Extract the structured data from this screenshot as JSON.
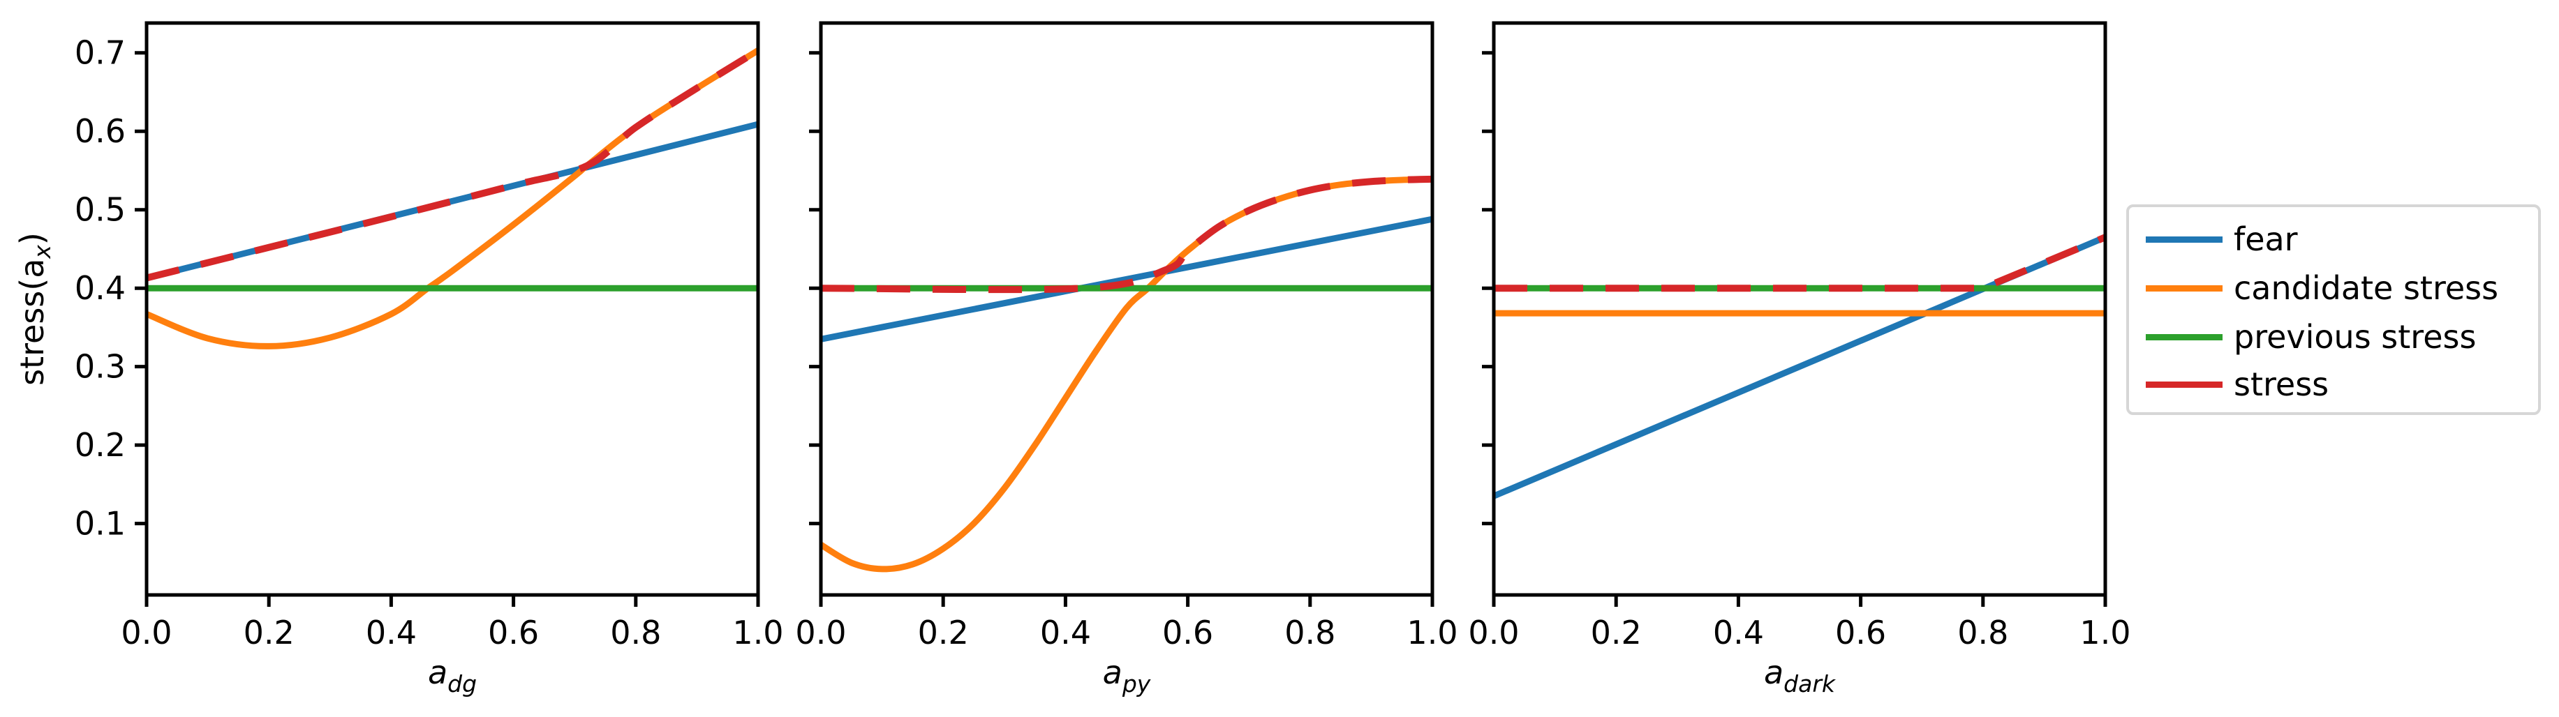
{
  "figure": {
    "ylabel": "stress(a",
    "ylabel_sub": "x",
    "ylabel_close": ")",
    "yticks": [
      "0.1",
      "0.2",
      "0.3",
      "0.4",
      "0.5",
      "0.6",
      "0.7"
    ],
    "xticks": [
      "0.0",
      "0.2",
      "0.4",
      "0.6",
      "0.8",
      "1.0"
    ]
  },
  "legend": {
    "items": [
      {
        "label": "fear",
        "color": "#1f77b4"
      },
      {
        "label": "candidate stress",
        "color": "#ff7f0e"
      },
      {
        "label": "previous stress",
        "color": "#2ca02c"
      },
      {
        "label": "stress",
        "color": "#d62728"
      }
    ]
  },
  "colors": {
    "fear": "#1f77b4",
    "candidate": "#ff7f0e",
    "previous": "#2ca02c",
    "stress": "#d62728",
    "legend_border": "#d6d6d6"
  },
  "chart_data": [
    {
      "type": "line",
      "title": "",
      "xlabel": "a_dg",
      "xlabel_main": "a",
      "xlabel_sub": "dg",
      "ylabel": "stress(a_x)",
      "xlim": [
        0.0,
        1.0
      ],
      "ylim": [
        0.009,
        0.738
      ],
      "grid": false,
      "legend_position": "outside right",
      "series": [
        {
          "name": "fear",
          "style": "solid",
          "x": [
            0.0,
            1.0
          ],
          "y": [
            0.413,
            0.609
          ]
        },
        {
          "name": "candidate stress",
          "style": "solid",
          "x": [
            0.0,
            0.1,
            0.2,
            0.3,
            0.4,
            0.46,
            0.5,
            0.6,
            0.7,
            0.72,
            0.8,
            0.9,
            1.0
          ],
          "y": [
            0.367,
            0.336,
            0.326,
            0.337,
            0.367,
            0.4,
            0.422,
            0.481,
            0.543,
            0.556,
            0.605,
            0.655,
            0.703
          ]
        },
        {
          "name": "previous stress",
          "style": "solid",
          "x": [
            0.0,
            1.0
          ],
          "y": [
            0.4,
            0.4
          ]
        },
        {
          "name": "stress",
          "style": "dashed",
          "x": [
            0.0,
            0.2,
            0.4,
            0.6,
            0.72,
            0.8,
            0.9,
            1.0
          ],
          "y": [
            0.413,
            0.452,
            0.491,
            0.531,
            0.556,
            0.605,
            0.655,
            0.703
          ]
        }
      ]
    },
    {
      "type": "line",
      "title": "",
      "xlabel": "a_py",
      "xlabel_main": "a",
      "xlabel_sub": "py",
      "ylabel": "",
      "xlim": [
        0.0,
        1.0
      ],
      "ylim": [
        0.009,
        0.738
      ],
      "grid": false,
      "series": [
        {
          "name": "fear",
          "style": "solid",
          "x": [
            0.0,
            1.0
          ],
          "y": [
            0.335,
            0.488
          ]
        },
        {
          "name": "candidate stress",
          "style": "solid",
          "x": [
            0.0,
            0.05,
            0.1,
            0.15,
            0.2,
            0.25,
            0.3,
            0.35,
            0.4,
            0.45,
            0.5,
            0.535,
            0.566,
            0.6,
            0.65,
            0.7,
            0.75,
            0.8,
            0.85,
            0.9,
            0.95,
            1.0
          ],
          "y": [
            0.073,
            0.05,
            0.042,
            0.048,
            0.068,
            0.1,
            0.145,
            0.2,
            0.26,
            0.32,
            0.375,
            0.4,
            0.424,
            0.448,
            0.478,
            0.499,
            0.514,
            0.525,
            0.532,
            0.536,
            0.538,
            0.539
          ]
        },
        {
          "name": "previous stress",
          "style": "solid",
          "x": [
            0.0,
            1.0
          ],
          "y": [
            0.4,
            0.4
          ]
        },
        {
          "name": "stress",
          "style": "dashed",
          "x": [
            0.0,
            0.43,
            0.566,
            0.6,
            0.65,
            0.7,
            0.75,
            0.8,
            0.85,
            0.9,
            0.95,
            1.0
          ],
          "y": [
            0.4,
            0.4,
            0.424,
            0.448,
            0.478,
            0.499,
            0.514,
            0.525,
            0.532,
            0.536,
            0.538,
            0.539
          ]
        }
      ]
    },
    {
      "type": "line",
      "title": "",
      "xlabel": "a_dark",
      "xlabel_main": "a",
      "xlabel_sub": "dark",
      "ylabel": "",
      "xlim": [
        0.0,
        1.0
      ],
      "ylim": [
        0.009,
        0.738
      ],
      "grid": false,
      "series": [
        {
          "name": "fear",
          "style": "solid",
          "x": [
            0.0,
            1.0
          ],
          "y": [
            0.135,
            0.465
          ]
        },
        {
          "name": "candidate stress",
          "style": "solid",
          "x": [
            0.0,
            1.0
          ],
          "y": [
            0.368,
            0.368
          ]
        },
        {
          "name": "previous stress",
          "style": "solid",
          "x": [
            0.0,
            1.0
          ],
          "y": [
            0.4,
            0.4
          ]
        },
        {
          "name": "stress",
          "style": "dashed",
          "x": [
            0.0,
            0.8,
            1.0
          ],
          "y": [
            0.4,
            0.4,
            0.465
          ]
        }
      ]
    }
  ]
}
